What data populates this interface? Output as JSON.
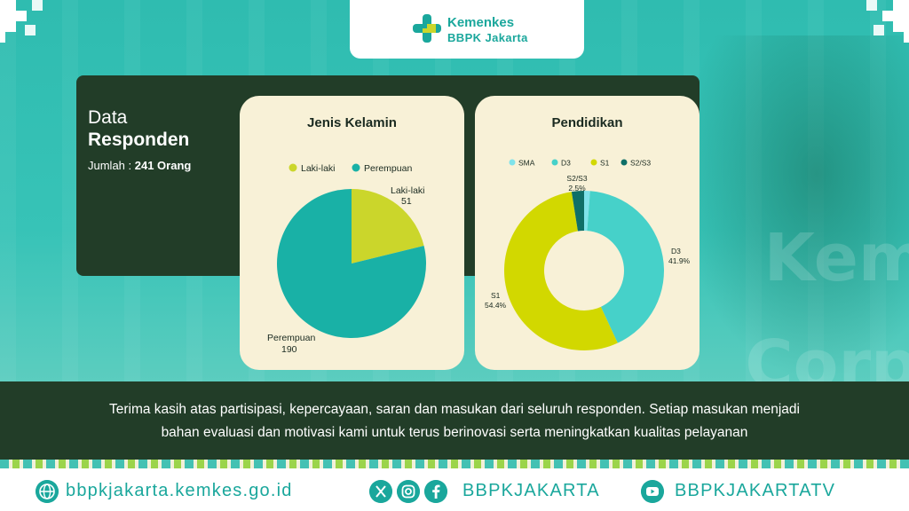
{
  "header": {
    "brand_line1": "Kemenkes",
    "brand_line2": "BBPK Jakarta"
  },
  "background": {
    "wall_text_1": "Kem",
    "wall_text_2": "Corp"
  },
  "summary": {
    "line1": "Data",
    "line2": "Responden",
    "count_label": "Jumlah : ",
    "count_value": "241 Orang"
  },
  "chart_data": [
    {
      "type": "pie",
      "title": "Jenis Kelamin",
      "categories": [
        "Laki-laki",
        "Perempuan"
      ],
      "values": [
        51,
        190
      ],
      "colors": [
        "#cbd62b",
        "#19b1a6"
      ],
      "legend": "top"
    },
    {
      "type": "pie",
      "title": "Pendidikan",
      "variant": "donut",
      "categories": [
        "SMA",
        "D3",
        "S1",
        "S2/S3"
      ],
      "values": [
        1.2,
        41.9,
        54.4,
        2.5
      ],
      "labels": [
        "",
        "41.9%",
        "54.4%",
        "2.5%"
      ],
      "colors": [
        "#7fe3ea",
        "#46d1c9",
        "#d2d800",
        "#0f6f67"
      ],
      "legend": "top"
    }
  ],
  "message": {
    "line1": "Terima kasih atas partisipasi, kepercayaan, saran dan masukan dari seluruh responden. Setiap masukan menjadi",
    "line2": "bahan evaluasi dan motivasi kami untuk terus berinovasi serta meningkatkan kualitas pelayanan"
  },
  "footer": {
    "website": "bbpkjakarta.kemkes.go.id",
    "social": "BBPKJAKARTA",
    "youtube": "BBPKJAKARTATV",
    "icons": [
      "globe-icon",
      "x-icon",
      "instagram-icon",
      "facebook-icon",
      "youtube-icon"
    ],
    "accent": "#1aa79c"
  }
}
